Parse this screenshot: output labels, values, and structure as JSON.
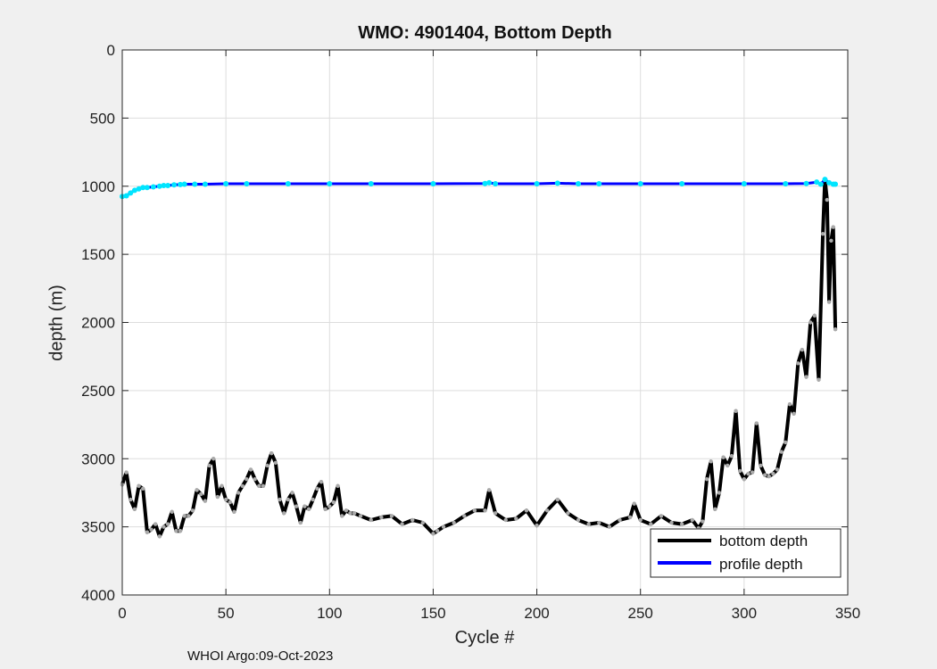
{
  "chart_data": {
    "type": "line",
    "title": "WMO: 4901404, Bottom Depth",
    "xlabel": "Cycle #",
    "ylabel": "depth (m)",
    "xlim": [
      0,
      350
    ],
    "ylim": [
      0,
      4000
    ],
    "y_reversed": true,
    "xticks": [
      0,
      50,
      100,
      150,
      200,
      250,
      300,
      350
    ],
    "yticks": [
      0,
      500,
      1000,
      1500,
      2000,
      2500,
      3000,
      3500,
      4000
    ],
    "grid": true,
    "legend_position": "bottom-right",
    "series": [
      {
        "name": "bottom depth",
        "color": "#000000",
        "marker_color": "#aaaaaa",
        "x": [
          0,
          2,
          4,
          6,
          8,
          10,
          12,
          14,
          16,
          18,
          20,
          22,
          24,
          26,
          28,
          30,
          32,
          34,
          36,
          38,
          40,
          42,
          44,
          46,
          48,
          50,
          52,
          54,
          56,
          58,
          60,
          62,
          64,
          66,
          68,
          70,
          72,
          74,
          76,
          78,
          80,
          82,
          84,
          86,
          88,
          90,
          92,
          94,
          96,
          98,
          100,
          102,
          104,
          106,
          108,
          110,
          112,
          115,
          120,
          125,
          130,
          135,
          140,
          145,
          150,
          152,
          155,
          160,
          165,
          170,
          175,
          177,
          180,
          185,
          190,
          195,
          200,
          205,
          210,
          215,
          220,
          225,
          230,
          235,
          240,
          245,
          247,
          250,
          255,
          260,
          265,
          270,
          275,
          278,
          280,
          282,
          284,
          286,
          288,
          290,
          292,
          294,
          296,
          298,
          300,
          302,
          304,
          306,
          308,
          310,
          312,
          314,
          316,
          318,
          320,
          322,
          324,
          326,
          328,
          330,
          332,
          334,
          336,
          338,
          339,
          340,
          341,
          342,
          343,
          344
        ],
        "y": [
          3190,
          3100,
          3300,
          3370,
          3200,
          3220,
          3540,
          3520,
          3480,
          3570,
          3500,
          3480,
          3390,
          3530,
          3530,
          3420,
          3420,
          3380,
          3230,
          3260,
          3310,
          3050,
          3000,
          3280,
          3200,
          3300,
          3320,
          3390,
          3250,
          3200,
          3150,
          3080,
          3150,
          3200,
          3200,
          3050,
          2960,
          3030,
          3300,
          3400,
          3300,
          3250,
          3350,
          3470,
          3350,
          3370,
          3300,
          3220,
          3170,
          3370,
          3350,
          3320,
          3200,
          3420,
          3380,
          3400,
          3400,
          3420,
          3450,
          3430,
          3420,
          3480,
          3450,
          3470,
          3550,
          3530,
          3500,
          3470,
          3420,
          3380,
          3380,
          3230,
          3400,
          3450,
          3440,
          3380,
          3490,
          3380,
          3300,
          3400,
          3450,
          3480,
          3470,
          3500,
          3450,
          3430,
          3330,
          3450,
          3480,
          3420,
          3470,
          3480,
          3450,
          3510,
          3460,
          3150,
          3020,
          3370,
          3250,
          2990,
          3050,
          2980,
          2650,
          3090,
          3150,
          3110,
          3100,
          2740,
          3050,
          3120,
          3130,
          3110,
          3080,
          2950,
          2880,
          2600,
          2670,
          2300,
          2200,
          2400,
          2000,
          1950,
          2420,
          1350,
          950,
          1100,
          1850,
          1400,
          1300,
          2050
        ]
      },
      {
        "name": "profile depth",
        "color": "#0000ff",
        "marker_color": "#00e5ff",
        "x": [
          0,
          2,
          4,
          6,
          8,
          10,
          12,
          15,
          18,
          20,
          22,
          25,
          28,
          30,
          35,
          40,
          50,
          60,
          80,
          100,
          120,
          150,
          175,
          177,
          180,
          200,
          210,
          220,
          230,
          250,
          270,
          300,
          320,
          330,
          335,
          337,
          339,
          341,
          343,
          344
        ],
        "y": [
          1075,
          1070,
          1050,
          1030,
          1020,
          1010,
          1010,
          1005,
          1000,
          995,
          995,
          990,
          988,
          985,
          985,
          985,
          982,
          982,
          982,
          982,
          982,
          982,
          980,
          975,
          982,
          982,
          978,
          982,
          982,
          982,
          982,
          982,
          982,
          980,
          970,
          985,
          950,
          975,
          985,
          985
        ]
      }
    ]
  },
  "footer": "WHOI Argo:09-Oct-2023"
}
